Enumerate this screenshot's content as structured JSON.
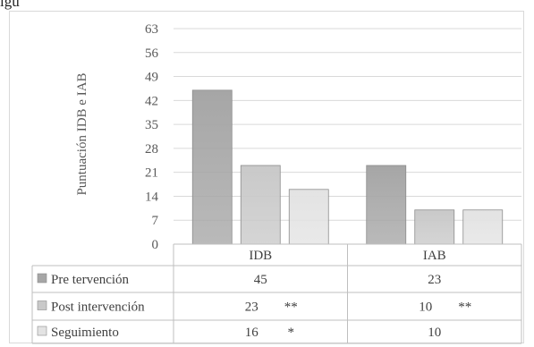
{
  "top_crop_text": "igu",
  "chart_data": {
    "type": "bar",
    "title": "",
    "xlabel": "",
    "ylabel": "Puntuación IDB e IAB",
    "ylim": [
      0,
      63
    ],
    "yticks": [
      0,
      7,
      14,
      21,
      28,
      35,
      42,
      49,
      56,
      63
    ],
    "categories": [
      "IDB",
      "IAB"
    ],
    "grid": true,
    "legend": "table-left",
    "series": [
      {
        "name": "Pre tervención",
        "values": [
          45,
          23
        ],
        "color": "#a6a6a6",
        "table_values": [
          "45",
          "23"
        ],
        "marks": [
          "",
          ""
        ]
      },
      {
        "name": "Post intervención",
        "values": [
          23,
          10
        ],
        "color": "#c9c9c9",
        "table_values": [
          "23",
          "10"
        ],
        "marks": [
          "**",
          "**"
        ]
      },
      {
        "name": "Seguimiento",
        "values": [
          16,
          10
        ],
        "color": "#e3e3e3",
        "table_values": [
          "16",
          "10"
        ],
        "marks": [
          "*",
          ""
        ]
      }
    ]
  }
}
